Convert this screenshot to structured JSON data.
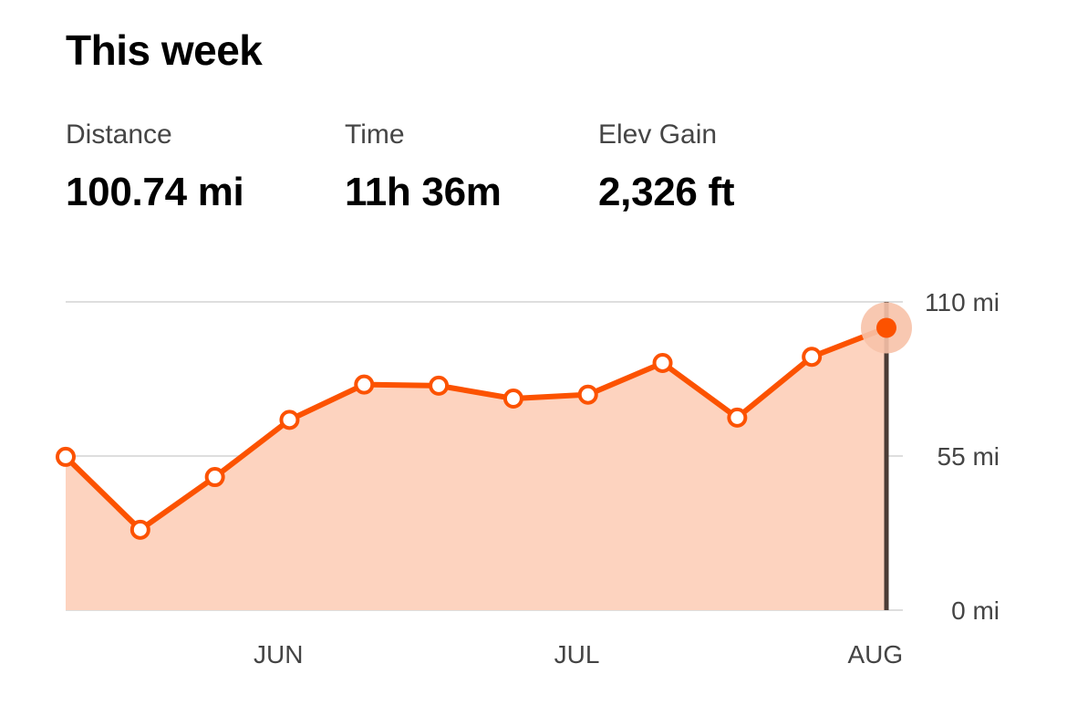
{
  "header": {
    "title": "This week"
  },
  "stats": [
    {
      "label": "Distance",
      "value": "100.74 mi"
    },
    {
      "label": "Time",
      "value": "11h 36m"
    },
    {
      "label": "Elev Gain",
      "value": "2,326 ft"
    }
  ],
  "colors": {
    "line": "#fc5200",
    "area": "#fdd3bf",
    "grid": "#dedede",
    "cursor": "#4a3b35",
    "halo": "#f7c2a8"
  },
  "chart_data": {
    "type": "area",
    "xlabel": "",
    "ylabel": "",
    "ylim": [
      0,
      110
    ],
    "grid": true,
    "y_ticks": [
      {
        "value": 110,
        "label": "110 mi"
      },
      {
        "value": 55,
        "label": "55 mi"
      },
      {
        "value": 0,
        "label": "0 mi"
      }
    ],
    "x_ticks": [
      {
        "week_index": 2.9,
        "label": "JUN"
      },
      {
        "week_index": 6.9,
        "label": "JUL"
      },
      {
        "week_index": 10.9,
        "label": "AUG"
      }
    ],
    "series": [
      {
        "values": [
          54.7,
          28.7,
          47.5,
          67.9,
          80.5,
          80.1,
          75.5,
          76.9,
          88.2,
          68.7,
          90.4,
          100.74
        ]
      }
    ],
    "highlight_index": 11
  }
}
